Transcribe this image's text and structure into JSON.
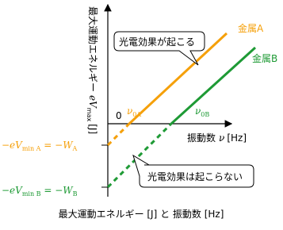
{
  "y_axis": {
    "label": "最大運動エネルギー",
    "symbol": "eV",
    "subscript": "max",
    "unit": "[J]"
  },
  "x_axis": {
    "label": "振動数",
    "symbol": "ν",
    "unit": "[Hz]"
  },
  "origin": "0",
  "callouts": [
    "光電効果が起こる",
    "光電効果は起こらない"
  ],
  "lines": [
    {
      "label": "金属A",
      "threshold": {
        "symbol": "ν",
        "subscript": "0A"
      },
      "intercept": {
        "left": "−eV",
        "left_sub": "min A",
        "middle": " = −W",
        "right_sub": "A"
      }
    },
    {
      "label": "金属B",
      "threshold": {
        "symbol": "ν",
        "subscript": "0B"
      },
      "intercept": {
        "left": "−eV",
        "left_sub": "min B",
        "middle": " = −W",
        "right_sub": "B"
      }
    }
  ],
  "caption": "最大運動エネルギー [J] と 振動数 [Hz]"
}
